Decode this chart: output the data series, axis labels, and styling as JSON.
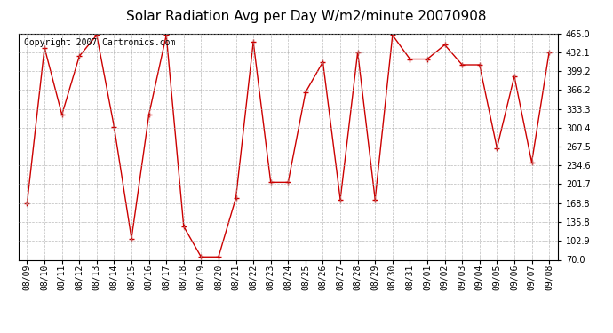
{
  "title": "Solar Radiation Avg per Day W/m2/minute 20070908",
  "copyright": "Copyright 2007 Cartronics.com",
  "dates": [
    "08/09",
    "08/10",
    "08/11",
    "08/12",
    "08/13",
    "08/14",
    "08/15",
    "08/16",
    "08/17",
    "08/18",
    "08/19",
    "08/20",
    "08/21",
    "08/22",
    "08/23",
    "08/24",
    "08/25",
    "08/26",
    "08/27",
    "08/28",
    "08/29",
    "08/30",
    "08/31",
    "09/01",
    "09/02",
    "09/03",
    "09/04",
    "09/05",
    "09/06",
    "09/07",
    "09/08"
  ],
  "values": [
    168.8,
    440.0,
    323.0,
    425.0,
    462.0,
    302.0,
    107.0,
    323.0,
    462.0,
    128.0,
    75.0,
    75.0,
    178.0,
    450.0,
    205.0,
    205.0,
    362.0,
    415.0,
    175.0,
    432.0,
    175.0,
    462.0,
    420.0,
    420.0,
    445.0,
    410.0,
    410.0,
    265.0,
    390.0,
    240.0,
    432.1
  ],
  "ylim": [
    70.0,
    465.0
  ],
  "yticks": [
    70.0,
    102.9,
    135.8,
    168.8,
    201.7,
    234.6,
    267.5,
    300.4,
    333.3,
    366.2,
    399.2,
    432.1,
    465.0
  ],
  "line_color": "#cc0000",
  "marker": "+",
  "marker_color": "#cc0000",
  "bg_color": "#ffffff",
  "grid_color": "#aaaaaa",
  "title_color": "#000000",
  "copyright_color": "#000000",
  "title_fontsize": 11,
  "copyright_fontsize": 7,
  "tick_label_fontsize": 7,
  "tick_label_color": "#000000"
}
